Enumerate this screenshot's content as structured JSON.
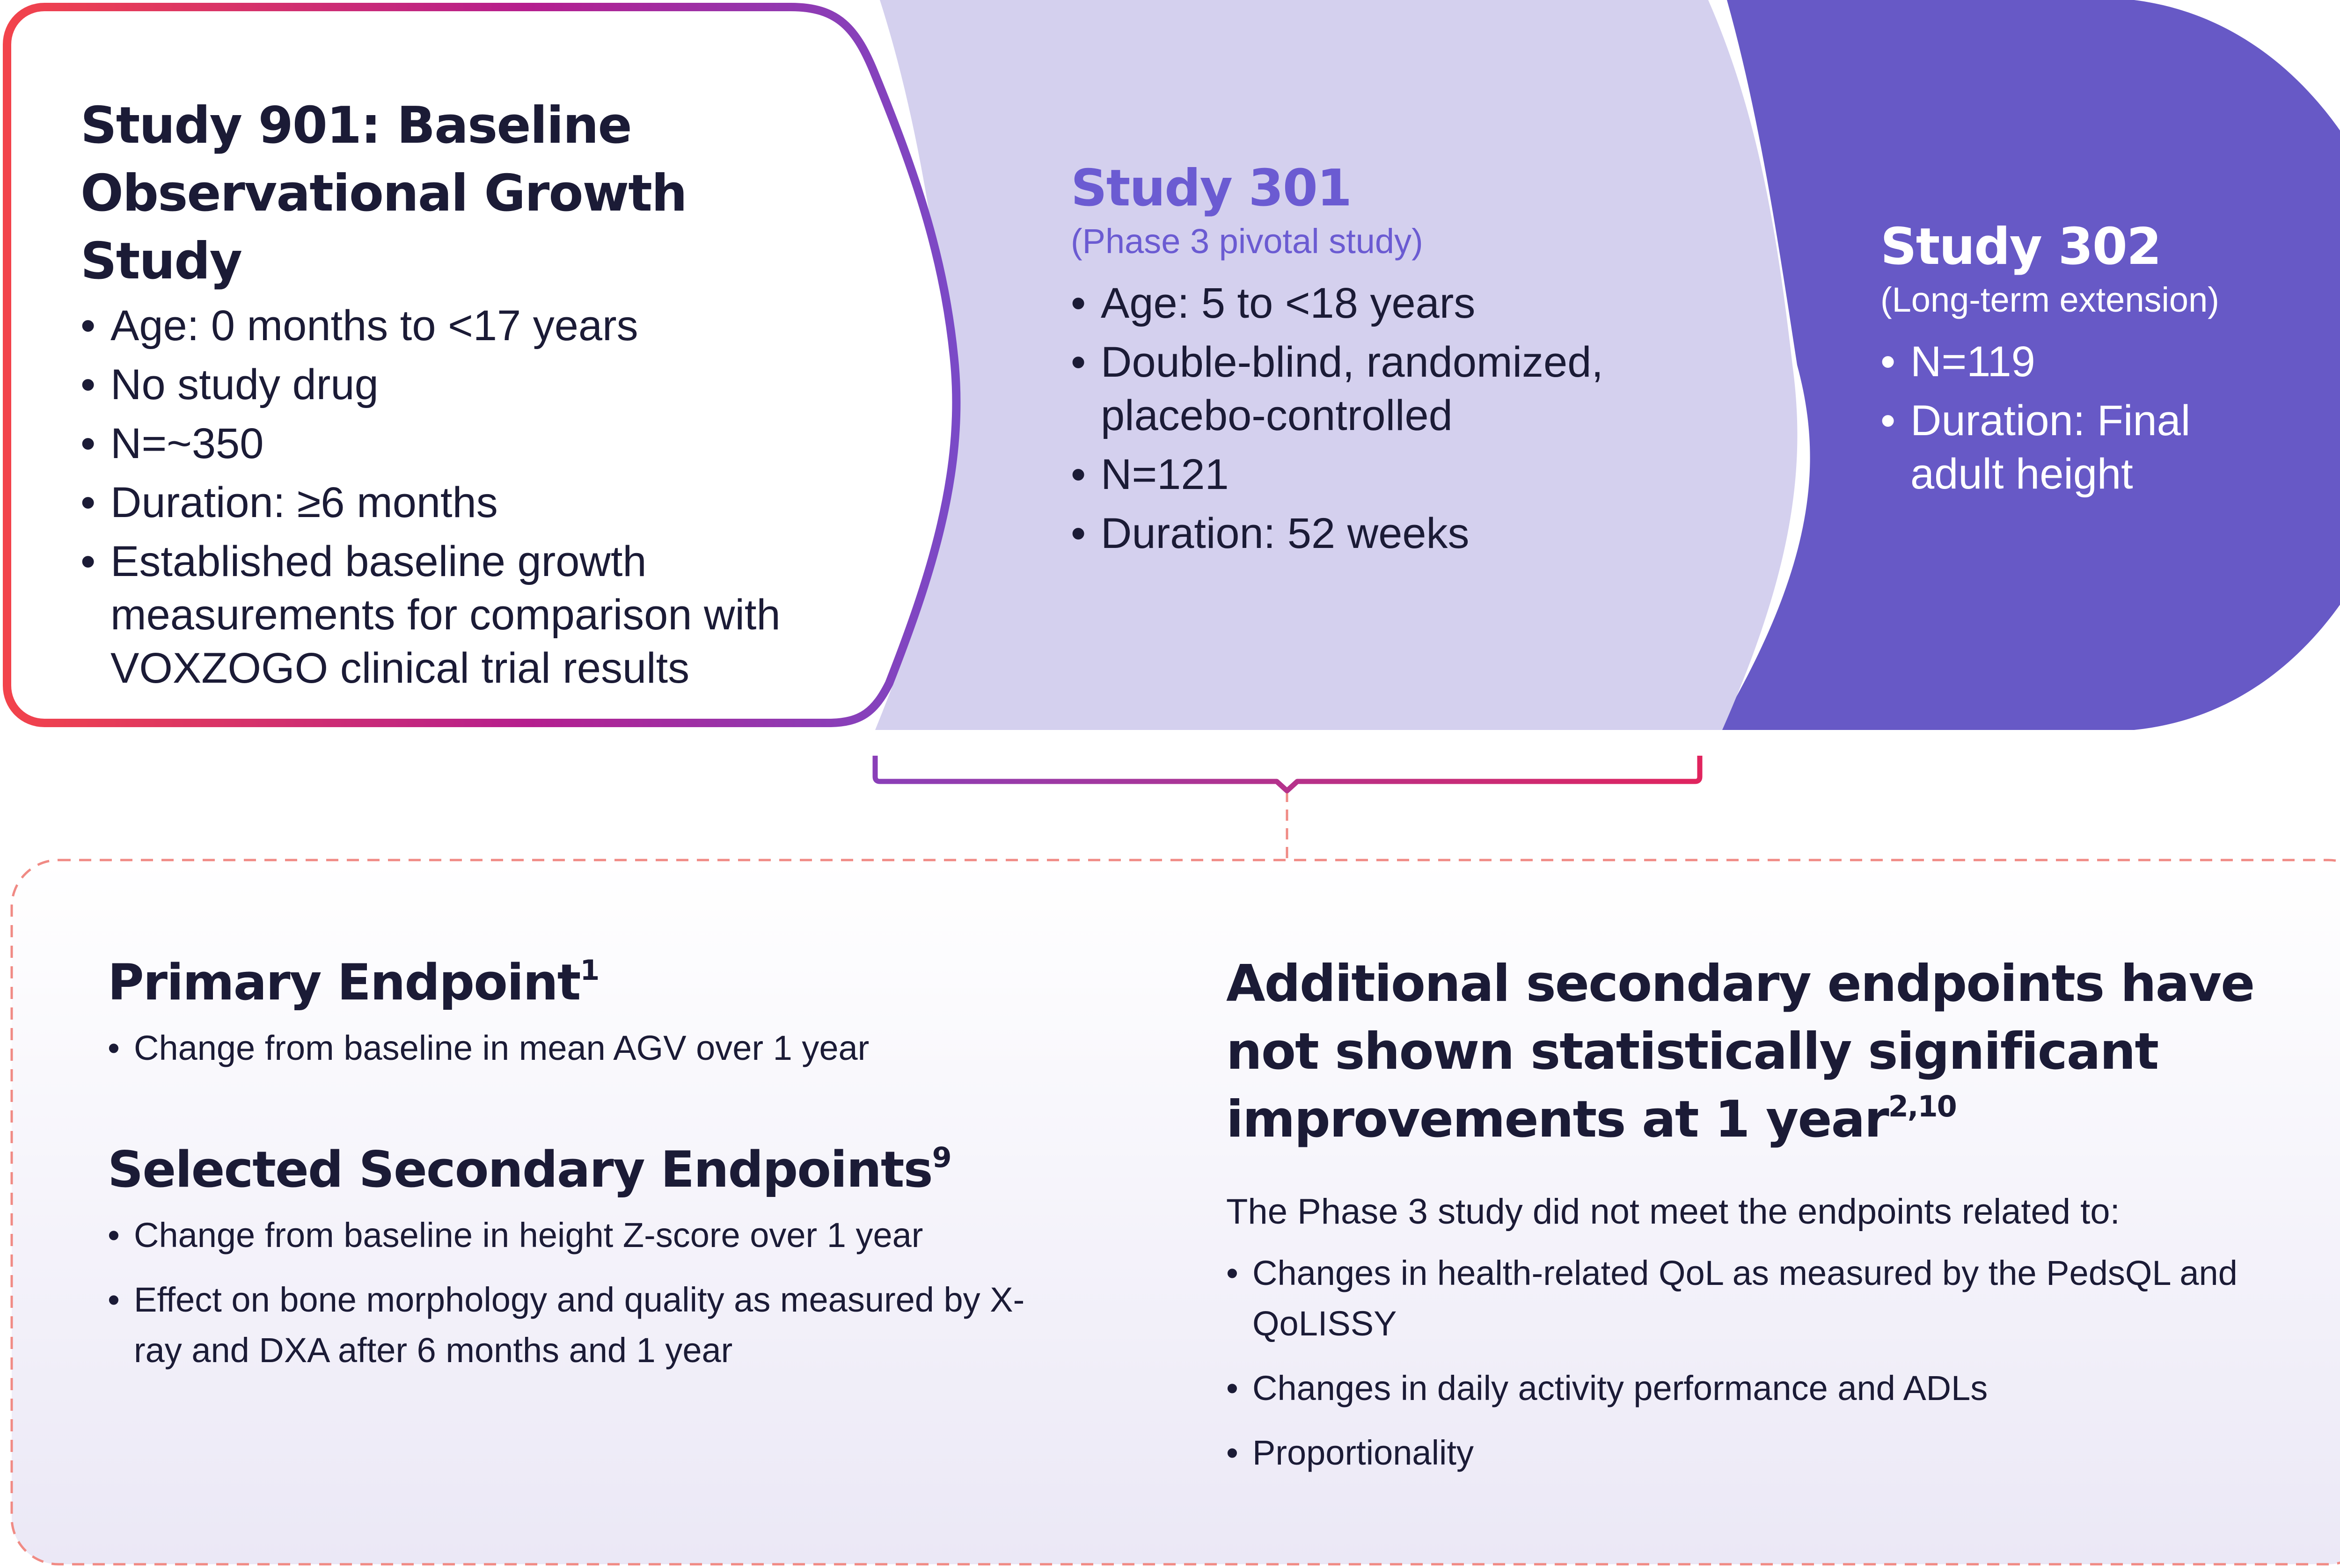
{
  "colors": {
    "navy_text": "#1b1b36",
    "lavender_fill": "#d4d0ee",
    "purple_fill": "#6759c6",
    "purple_title": "#6b5bd2",
    "gradient_red": "#f2434b",
    "gradient_magenta": "#b51e8e",
    "gradient_violet": "#7a4ac7",
    "dashed_border": "#f08a84",
    "bottom_panel_fill_top": "#ffffff",
    "bottom_panel_fill_bottom": "#ebe8f6"
  },
  "study_901": {
    "title": "Study 901: Baseline Observational Growth Study",
    "bullets": [
      "Age: 0 months to <17 years",
      "No study drug",
      "N=~350",
      "Duration: ≥6 months",
      "Established baseline growth measurements for comparison with VOXZOGO clinical trial results"
    ]
  },
  "study_301": {
    "title": "Study 301",
    "subtitle": "(Phase 3 pivotal study)",
    "bullets": [
      "Age: 5 to <18 years",
      "Double-blind, randomized, placebo-controlled",
      "N=121",
      "Duration: 52 weeks"
    ]
  },
  "study_302": {
    "title": "Study 302",
    "subtitle": "(Long-term extension)",
    "bullets": [
      "N=119",
      "Duration: Final adult height"
    ]
  },
  "endpoints": {
    "primary": {
      "title": "Primary Endpoint",
      "sup": "1",
      "bullets": [
        "Change from baseline in mean AGV over 1 year"
      ]
    },
    "secondary": {
      "title": "Selected Secondary Endpoints",
      "sup": "9",
      "bullets": [
        "Change from baseline in height Z-score over 1 year",
        "Effect on bone morphology and quality as measured by X-ray and DXA after 6 months and 1 year"
      ]
    },
    "additional": {
      "title": "Additional secondary endpoints have not shown statistically significant improvements at 1 year",
      "sup": "2,10",
      "intro": "The Phase 3 study did not meet the endpoints related to:",
      "bullets": [
        "Changes in health-related QoL as measured by the PedsQL and QoLISSY",
        "Changes in daily activity performance and ADLs",
        "Proportionality"
      ]
    }
  }
}
